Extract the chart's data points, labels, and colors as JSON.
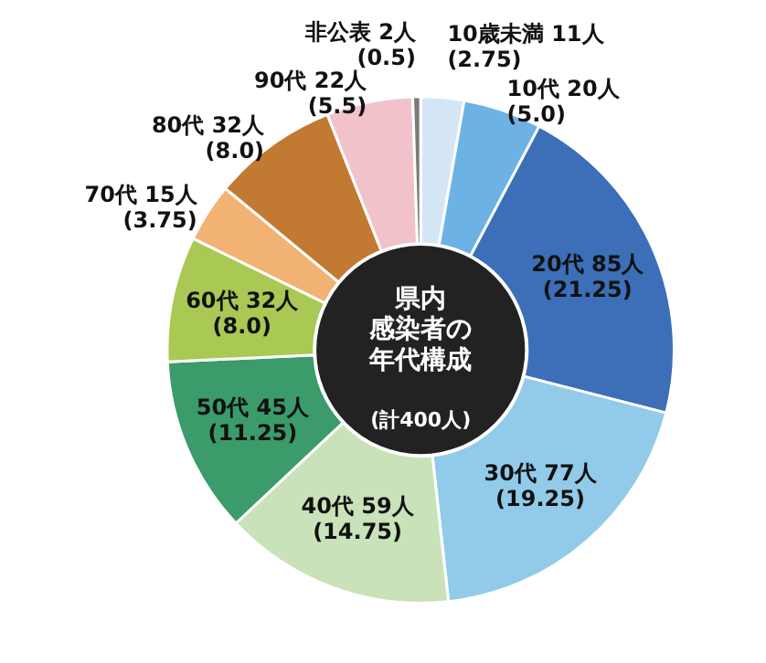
{
  "chart_data": {
    "type": "donut",
    "title": "県内感染者の年代構成",
    "subtitle": "(計400人)",
    "categories": [
      "10歳未満",
      "10代",
      "20代",
      "30代",
      "40代",
      "50代",
      "60代",
      "70代",
      "80代",
      "90代",
      "非公表"
    ],
    "values": [
      11,
      20,
      85,
      77,
      59,
      45,
      32,
      15,
      32,
      22,
      2
    ],
    "value_labels": [
      "11人\n(2.75)",
      "20人\n(5.0)",
      "85人\n(21.25)",
      "77人\n(19.25)",
      "59人\n(14.75)",
      "45人\n(11.25)",
      "32人\n(8.0)",
      "15人\n(3.75)",
      "32人\n(8.0)",
      "22人\n(5.5)",
      "2人\n(0.5)"
    ],
    "colors": [
      "#d4e6f6",
      "#6cb2e4",
      "#3c6fb8",
      "#92cbe9",
      "#c9e2b9",
      "#3b9b6b",
      "#a9c954",
      "#f2b273",
      "#c27a33",
      "#f2c2ca",
      "#7a7a7a"
    ]
  }
}
